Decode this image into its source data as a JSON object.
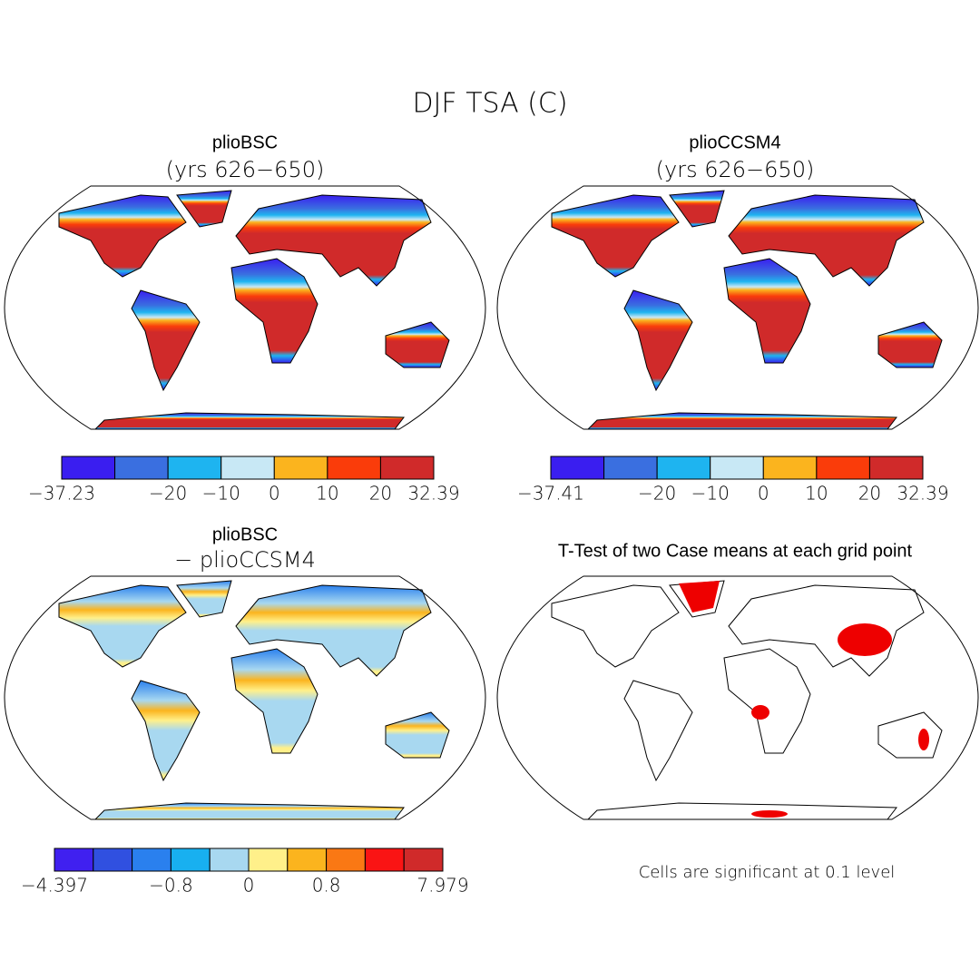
{
  "title": "DJF TSA (C)",
  "panels": [
    {
      "title": "plioBSC",
      "subtitle": "(yrs 626−650)",
      "colorbar": {
        "colors": [
          "#3a1ef0",
          "#3a6fe0",
          "#1eb4f0",
          "#c8e8f5",
          "#fbb41e",
          "#fa3c0a",
          "#d02a2a"
        ],
        "labels": [
          "−37.23",
          null,
          "−20",
          "−10",
          "0",
          "10",
          "20",
          "32.39"
        ]
      }
    },
    {
      "title": "plioCCSM4",
      "subtitle": "(yrs 626−650)",
      "colorbar": {
        "colors": [
          "#3a1ef0",
          "#3a6fe0",
          "#1eb4f0",
          "#c8e8f5",
          "#fbb41e",
          "#fa3c0a",
          "#d02a2a"
        ],
        "labels": [
          "−37.41",
          null,
          "−20",
          "−10",
          "0",
          "10",
          "20",
          "32.39"
        ]
      }
    },
    {
      "title": "plioBSC",
      "subtitle": "− plioCCSM4",
      "colorbar": {
        "colors": [
          "#4020f0",
          "#3050e0",
          "#2a80ee",
          "#18b0f0",
          "#a8d8f0",
          "#fff08a",
          "#fbb41e",
          "#fa7814",
          "#fa1414",
          "#d02a2a"
        ],
        "labels": [
          "−4.397",
          null,
          null,
          "−0.8",
          null,
          "0",
          null,
          "0.8",
          null,
          null,
          "7.979"
        ]
      }
    },
    {
      "title": "T-Test of two Case means at each grid point",
      "note": "Cells are significant at 0.1 level"
    }
  ]
}
